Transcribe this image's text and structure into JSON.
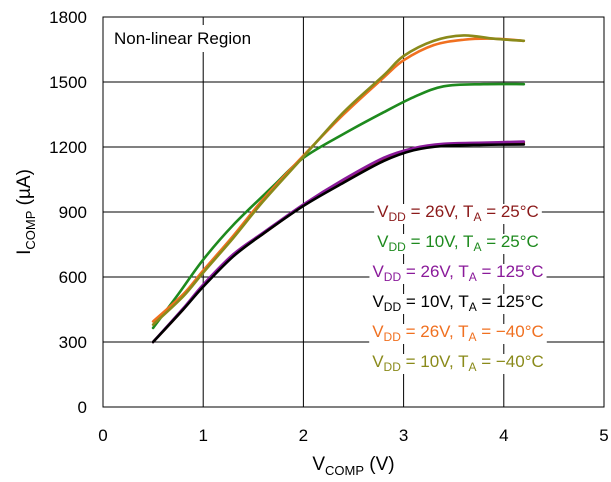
{
  "chart_data": {
    "type": "line",
    "annotation": "Non-linear Region",
    "xlabel": {
      "main": "V",
      "sub": "COMP",
      "unit": " (V)"
    },
    "ylabel": {
      "main": "I",
      "sub": "COMP",
      "unit": " (µA)"
    },
    "xlim": [
      0,
      5
    ],
    "ylim": [
      0,
      1800
    ],
    "xticks": [
      "0",
      "1",
      "2",
      "3",
      "4",
      "5"
    ],
    "yticks": [
      "0",
      "300",
      "600",
      "900",
      "1200",
      "1500",
      "1800"
    ],
    "grid": true,
    "legend_position": "lower-right",
    "series": [
      {
        "name": "VDD = 26V, TA = 25°C",
        "label": {
          "vdd": "26V",
          "ta": "25°C"
        },
        "color": "#8b1a1a",
        "x": [
          0.5,
          0.8,
          1.0,
          1.3,
          1.6,
          2.0,
          2.4,
          2.8,
          3.1,
          3.4,
          3.8,
          4.2
        ],
        "y": [
          300,
          450,
          560,
          700,
          800,
          930,
          1040,
          1140,
          1190,
          1210,
          1215,
          1220
        ]
      },
      {
        "name": "VDD = 10V, TA = 25°C",
        "label": {
          "vdd": "10V",
          "ta": "25°C"
        },
        "color": "#1e8a1e",
        "x": [
          0.5,
          0.75,
          1.0,
          1.3,
          1.7,
          2.0,
          2.4,
          2.8,
          3.1,
          3.4,
          3.8,
          4.2
        ],
        "y": [
          365,
          520,
          680,
          840,
          1020,
          1150,
          1260,
          1360,
          1430,
          1480,
          1490,
          1490
        ]
      },
      {
        "name": "VDD = 26V, TA = 125°C",
        "label": {
          "vdd": "26V",
          "ta": "125°C"
        },
        "color": "#8a1a9a",
        "x": [
          0.5,
          0.8,
          1.0,
          1.3,
          1.6,
          2.0,
          2.4,
          2.8,
          3.1,
          3.4,
          3.8,
          4.2
        ],
        "y": [
          300,
          455,
          565,
          705,
          805,
          935,
          1050,
          1150,
          1195,
          1215,
          1220,
          1225
        ]
      },
      {
        "name": "VDD = 10V, TA = 125°C",
        "label": {
          "vdd": "10V",
          "ta": "125°C"
        },
        "color": "#000000",
        "x": [
          0.5,
          0.8,
          1.0,
          1.3,
          1.6,
          2.0,
          2.4,
          2.8,
          3.1,
          3.4,
          3.8,
          4.2
        ],
        "y": [
          300,
          450,
          555,
          695,
          800,
          928,
          1035,
          1135,
          1185,
          1205,
          1210,
          1212
        ]
      },
      {
        "name": "VDD = 26V, TA = −40°C",
        "label": {
          "vdd": "26V",
          "ta": "−40°C"
        },
        "color": "#f07020",
        "x": [
          0.5,
          0.8,
          1.0,
          1.3,
          1.6,
          2.0,
          2.4,
          2.8,
          3.0,
          3.3,
          3.6,
          3.9,
          4.2
        ],
        "y": [
          395,
          520,
          630,
          790,
          960,
          1160,
          1350,
          1520,
          1600,
          1670,
          1695,
          1700,
          1690
        ]
      },
      {
        "name": "VDD = 10V, TA = −40°C",
        "label": {
          "vdd": "10V",
          "ta": "−40°C"
        },
        "color": "#8a8a1a",
        "x": [
          0.5,
          0.8,
          1.0,
          1.3,
          1.6,
          2.0,
          2.4,
          2.8,
          3.0,
          3.3,
          3.6,
          3.9,
          4.2
        ],
        "y": [
          380,
          510,
          620,
          780,
          950,
          1155,
          1360,
          1530,
          1620,
          1690,
          1715,
          1700,
          1690
        ]
      }
    ]
  }
}
